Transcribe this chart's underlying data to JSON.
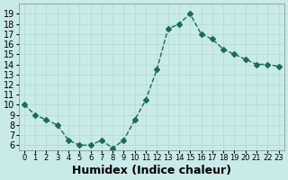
{
  "x": [
    0,
    1,
    2,
    3,
    4,
    5,
    6,
    7,
    8,
    9,
    10,
    11,
    12,
    13,
    14,
    15,
    16,
    17,
    18,
    19,
    20,
    21,
    22,
    23
  ],
  "y": [
    10,
    9,
    8.5,
    8,
    6.5,
    6,
    6,
    6.5,
    5.7,
    6.5,
    8.5,
    10.5,
    13.5,
    17.5,
    18,
    19,
    17,
    16.5,
    15.5,
    15,
    14.5,
    14,
    14,
    13.8
  ],
  "line_color": "#1a6b5a",
  "marker": "D",
  "marker_size": 3,
  "bg_color": "#c8eae8",
  "grid_color": "#b0d8d5",
  "xlabel": "Humidex (Indice chaleur)",
  "xlabel_fontsize": 9,
  "tick_fontsize": 7,
  "ylim": [
    5.5,
    20
  ],
  "xlim": [
    -0.5,
    23.5
  ],
  "yticks": [
    6,
    7,
    8,
    9,
    10,
    11,
    12,
    13,
    14,
    15,
    16,
    17,
    18,
    19
  ],
  "xticks": [
    0,
    1,
    2,
    3,
    4,
    5,
    6,
    7,
    8,
    9,
    10,
    11,
    12,
    13,
    14,
    15,
    16,
    17,
    18,
    19,
    20,
    21,
    22,
    23
  ]
}
